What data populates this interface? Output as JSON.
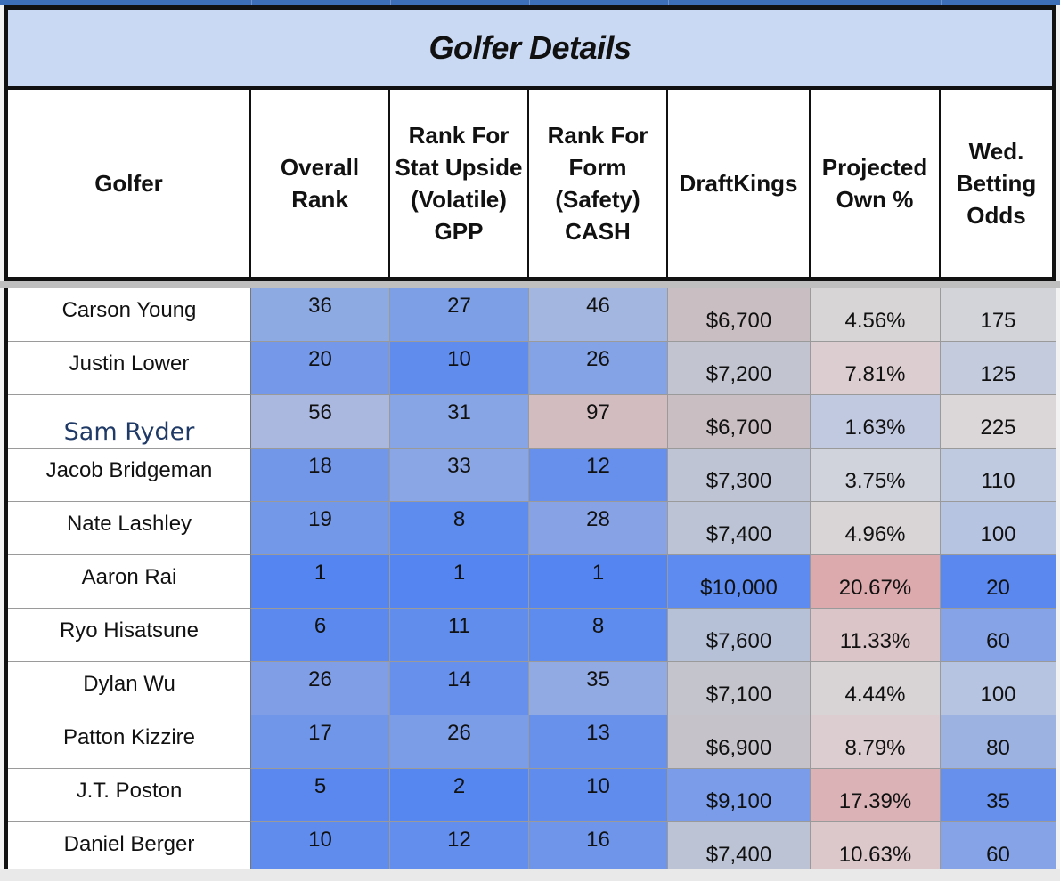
{
  "title": "Golfer Details",
  "headers": {
    "golfer": "Golfer",
    "overall": "Overall Rank",
    "stat": "Rank For Stat Upside (Volatile) GPP",
    "form": "Rank For Form (Safety) CASH",
    "dk": "DraftKings",
    "own": "Projected Own %",
    "odds": "Wed. Betting Odds"
  },
  "rows": [
    {
      "name": "Carson Young",
      "overall": "36",
      "stat": "27",
      "form": "46",
      "dk": "$6,700",
      "own": "4.56%",
      "odds": "175",
      "colors": {
        "overall": "#8eaae3",
        "stat": "#7c9fe6",
        "form": "#a3b6e0",
        "dk": "#c9bec1",
        "own": "#d8d5d6",
        "odds": "#d2d4da"
      }
    },
    {
      "name": "Justin Lower",
      "overall": "20",
      "stat": "10",
      "form": "26",
      "dk": "$7,200",
      "own": "7.81%",
      "odds": "125",
      "colors": {
        "overall": "#7599e8",
        "stat": "#5f8ced",
        "form": "#84a2e6",
        "dk": "#c2c5d0",
        "own": "#dccdd0",
        "odds": "#c3cbdd"
      }
    },
    {
      "name": "Sam Ryder",
      "hl": true,
      "overall": "56",
      "stat": "31",
      "form": "97",
      "dk": "$6,700",
      "own": "1.63%",
      "odds": "225",
      "colors": {
        "overall": "#aab8df",
        "stat": "#87a5e5",
        "form": "#d3bcbf",
        "dk": "#c9bec1",
        "own": "#c1c9e0",
        "odds": "#dbd6d7"
      }
    },
    {
      "name": "Jacob Bridgeman",
      "overall": "18",
      "stat": "33",
      "form": "12",
      "dk": "$7,300",
      "own": "3.75%",
      "odds": "110",
      "colors": {
        "overall": "#7397e8",
        "stat": "#8aa6e4",
        "form": "#6790ec",
        "dk": "#bec4d3",
        "own": "#d0d2dc",
        "odds": "#bfc9df"
      }
    },
    {
      "name": "Nate Lashley",
      "overall": "19",
      "stat": "8",
      "form": "28",
      "dk": "$7,400",
      "own": "4.96%",
      "odds": "100",
      "colors": {
        "overall": "#7498e8",
        "stat": "#5d8bee",
        "form": "#87a3e5",
        "dk": "#bcc3d4",
        "own": "#d9d4d6",
        "odds": "#b6c4e1"
      }
    },
    {
      "name": "Aaron Rai",
      "overall": "1",
      "stat": "1",
      "form": "1",
      "dk": "$10,000",
      "own": "20.67%",
      "odds": "20",
      "colors": {
        "overall": "#5585f0",
        "stat": "#5585f0",
        "form": "#5585f0",
        "dk": "#5e8bef",
        "own": "#dcaaad",
        "odds": "#5a88ef"
      }
    },
    {
      "name": "Ryo Hisatsune",
      "overall": "6",
      "stat": "11",
      "form": "8",
      "dk": "$7,600",
      "own": "11.33%",
      "odds": "60",
      "colors": {
        "overall": "#5b89ee",
        "stat": "#618eed",
        "form": "#5d8bee",
        "dk": "#b6c1d8",
        "own": "#dcc5c8",
        "odds": "#85a3e6"
      }
    },
    {
      "name": "Dylan Wu",
      "overall": "26",
      "stat": "14",
      "form": "35",
      "dk": "$7,100",
      "own": "4.44%",
      "odds": "100",
      "colors": {
        "overall": "#809ee6",
        "stat": "#6690ec",
        "form": "#92aae3",
        "dk": "#c4c4cd",
        "own": "#d8d4d6",
        "odds": "#b6c4e1"
      }
    },
    {
      "name": "Patton Kizzire",
      "overall": "17",
      "stat": "26",
      "form": "13",
      "dk": "$6,900",
      "own": "8.79%",
      "odds": "80",
      "colors": {
        "overall": "#7096e9",
        "stat": "#7b9de7",
        "form": "#6891ec",
        "dk": "#c6c2c9",
        "own": "#dccdd0",
        "odds": "#9cb3e2"
      }
    },
    {
      "name": "J.T. Poston",
      "overall": "5",
      "stat": "2",
      "form": "10",
      "dk": "$9,100",
      "own": "17.39%",
      "odds": "35",
      "colors": {
        "overall": "#5a88ef",
        "stat": "#5687f0",
        "form": "#5f8ced",
        "dk": "#7b9ce8",
        "own": "#dbb3b6",
        "odds": "#6690ec"
      }
    },
    {
      "name": "Daniel Berger",
      "overall": "10",
      "stat": "12",
      "form": "16",
      "dk": "$7,400",
      "own": "10.63%",
      "odds": "60",
      "colors": {
        "overall": "#5f8ced",
        "stat": "#638eed",
        "form": "#6e95ea",
        "dk": "#bcc3d4",
        "own": "#dcc7ca",
        "odds": "#85a3e6"
      }
    }
  ]
}
